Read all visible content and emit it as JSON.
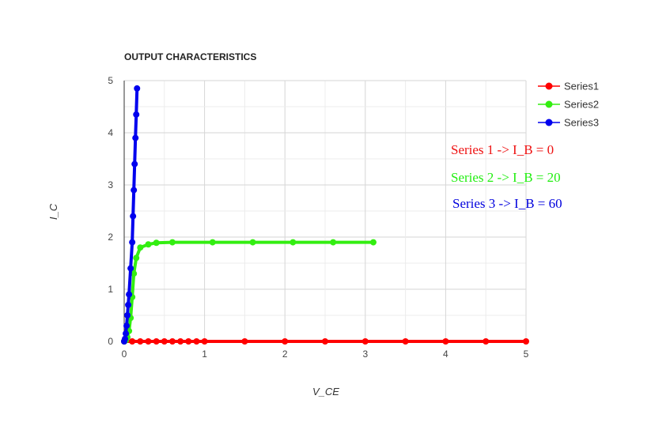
{
  "chart_data": {
    "type": "line",
    "title": "OUTPUT CHARACTERISTICS",
    "xlabel": "V_CE",
    "ylabel": "I_C",
    "xlim": [
      0,
      5
    ],
    "ylim": [
      0,
      5
    ],
    "xticks": [
      "0",
      "1",
      "2",
      "3",
      "4",
      "5"
    ],
    "yticks": [
      "0",
      "1",
      "2",
      "3",
      "4",
      "5"
    ],
    "grid": true,
    "legend_position": "top-right",
    "series": [
      {
        "name": "Series1",
        "color": "#ff0000",
        "points": [
          [
            0,
            0
          ],
          [
            0.1,
            0
          ],
          [
            0.2,
            0
          ],
          [
            0.3,
            0
          ],
          [
            0.4,
            0
          ],
          [
            0.5,
            0
          ],
          [
            0.6,
            0
          ],
          [
            0.7,
            0
          ],
          [
            0.8,
            0
          ],
          [
            0.9,
            0
          ],
          [
            1,
            0
          ],
          [
            1.5,
            0
          ],
          [
            2,
            0
          ],
          [
            2.5,
            0
          ],
          [
            3,
            0
          ],
          [
            3.5,
            0
          ],
          [
            4,
            0
          ],
          [
            4.5,
            0
          ],
          [
            5,
            0
          ]
        ]
      },
      {
        "name": "Series2",
        "color": "#33ee11",
        "points": [
          [
            0,
            0
          ],
          [
            0.02,
            0.02
          ],
          [
            0.04,
            0.08
          ],
          [
            0.06,
            0.2
          ],
          [
            0.08,
            0.45
          ],
          [
            0.1,
            0.85
          ],
          [
            0.12,
            1.3
          ],
          [
            0.15,
            1.6
          ],
          [
            0.2,
            1.8
          ],
          [
            0.3,
            1.86
          ],
          [
            0.4,
            1.89
          ],
          [
            0.6,
            1.9
          ],
          [
            1.1,
            1.9
          ],
          [
            1.6,
            1.9
          ],
          [
            2.1,
            1.9
          ],
          [
            2.6,
            1.9
          ],
          [
            3.1,
            1.9
          ]
        ]
      },
      {
        "name": "Series3",
        "color": "#0000ee",
        "points": [
          [
            0,
            0
          ],
          [
            0.01,
            0.05
          ],
          [
            0.02,
            0.15
          ],
          [
            0.03,
            0.3
          ],
          [
            0.04,
            0.5
          ],
          [
            0.05,
            0.7
          ],
          [
            0.06,
            0.9
          ],
          [
            0.08,
            1.4
          ],
          [
            0.1,
            1.9
          ],
          [
            0.11,
            2.4
          ],
          [
            0.12,
            2.9
          ],
          [
            0.13,
            3.4
          ],
          [
            0.14,
            3.9
          ],
          [
            0.15,
            4.35
          ],
          [
            0.16,
            4.85
          ]
        ]
      }
    ],
    "annotations": [
      {
        "text": "Series 1 -> I_B = 0",
        "color": "#ee1111"
      },
      {
        "text": "Series 2 -> I_B = 20",
        "color": "#22ee11"
      },
      {
        "text": "Series 3 -> I_B = 60",
        "color": "#0000dd"
      }
    ]
  }
}
